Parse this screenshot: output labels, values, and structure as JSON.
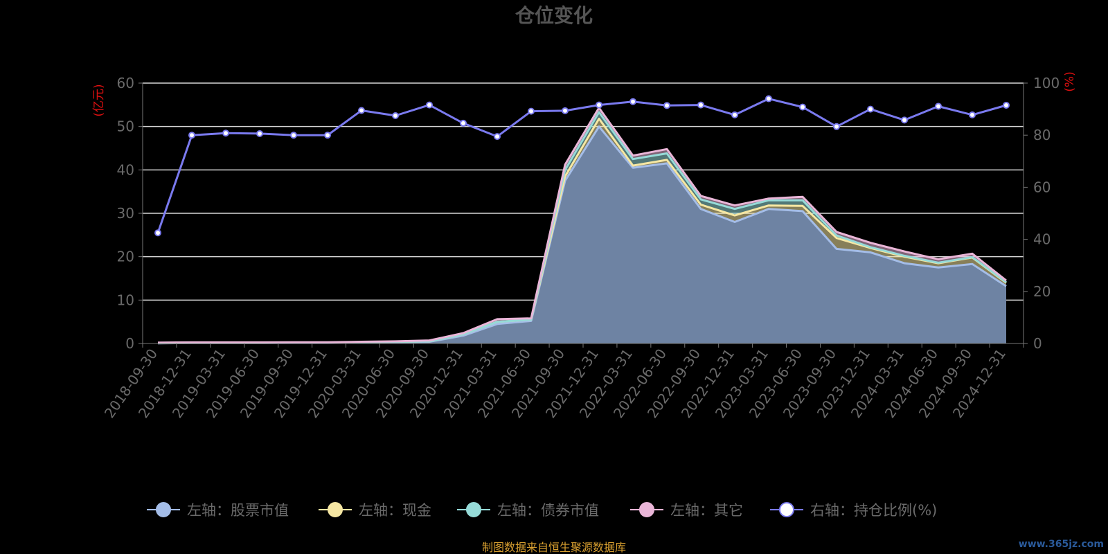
{
  "chart_data": {
    "type": "area",
    "title": "仓位变化",
    "left_axis_unit": "(亿元)",
    "right_axis_unit": "(%)",
    "left_ylim": [
      0,
      60
    ],
    "left_ticks": [
      "0",
      "10",
      "20",
      "30",
      "40",
      "50",
      "60"
    ],
    "right_ylim": [
      0,
      100
    ],
    "right_ticks": [
      "0",
      "20",
      "40",
      "60",
      "80",
      "100"
    ],
    "categories": [
      "2018-09-30",
      "2018-12-31",
      "2019-03-31",
      "2019-06-30",
      "2019-09-30",
      "2019-12-31",
      "2020-03-31",
      "2020-06-30",
      "2020-09-30",
      "2020-12-31",
      "2021-03-31",
      "2021-06-30",
      "2021-09-30",
      "2021-12-31",
      "2022-03-31",
      "2022-06-30",
      "2022-09-30",
      "2022-12-31",
      "2023-03-31",
      "2023-06-30",
      "2023-09-30",
      "2023-12-31",
      "2024-03-31",
      "2024-06-30",
      "2024-09-30",
      "2024-12-31"
    ],
    "stacked_series": [
      {
        "name": "左轴：股票市值",
        "color": "#a4bde8",
        "values": [
          0.05,
          0.1,
          0.1,
          0.1,
          0.12,
          0.12,
          0.2,
          0.3,
          0.4,
          1.8,
          4.5,
          5.2,
          37.5,
          50.0,
          40.5,
          41.5,
          31.0,
          28.0,
          31.0,
          30.5,
          21.8,
          21.0,
          18.5,
          17.5,
          18.3,
          13.2
        ]
      },
      {
        "name": "左轴：现金",
        "color": "#f6e7a3",
        "values": [
          0.05,
          0.05,
          0.05,
          0.05,
          0.05,
          0.05,
          0.1,
          0.1,
          0.1,
          0.3,
          0.5,
          0.3,
          1.0,
          1.8,
          0.5,
          0.8,
          1.0,
          1.5,
          0.8,
          1.2,
          2.5,
          1.0,
          1.5,
          1.0,
          1.5,
          0.8
        ]
      },
      {
        "name": "左轴：债券市值",
        "color": "#96dbd8",
        "values": [
          0,
          0,
          0,
          0,
          0,
          0,
          0,
          0,
          0,
          0,
          0,
          0,
          1.5,
          1.5,
          1.5,
          1.5,
          1.2,
          1.5,
          1.2,
          1.3,
          0.6,
          0.2,
          0.2,
          0.1,
          0.1,
          0.1
        ]
      },
      {
        "name": "左轴：其它",
        "color": "#eab6d8",
        "values": [
          0.1,
          0.1,
          0.1,
          0.1,
          0.1,
          0.1,
          0.1,
          0.1,
          0.2,
          0.3,
          0.6,
          0.3,
          1.2,
          1.0,
          0.8,
          1.0,
          0.8,
          0.8,
          0.4,
          0.8,
          0.8,
          1.0,
          1.0,
          0.8,
          0.8,
          0.4
        ]
      }
    ],
    "line_series": {
      "name": "右轴：持仓比例(%)",
      "color": "#7a7aef",
      "values": [
        42.5,
        80.0,
        80.8,
        80.6,
        80.0,
        80.0,
        89.5,
        87.5,
        91.6,
        84.6,
        79.5,
        89.2,
        89.4,
        91.6,
        92.9,
        91.4,
        91.6,
        87.8,
        94.0,
        90.8,
        83.3,
        90.0,
        85.8,
        91.1,
        87.8,
        91.5
      ]
    },
    "legend_position": "bottom",
    "grid": true
  },
  "source_note": "制图数据来自恒生聚源数据库",
  "watermark": "www.365jz.com"
}
